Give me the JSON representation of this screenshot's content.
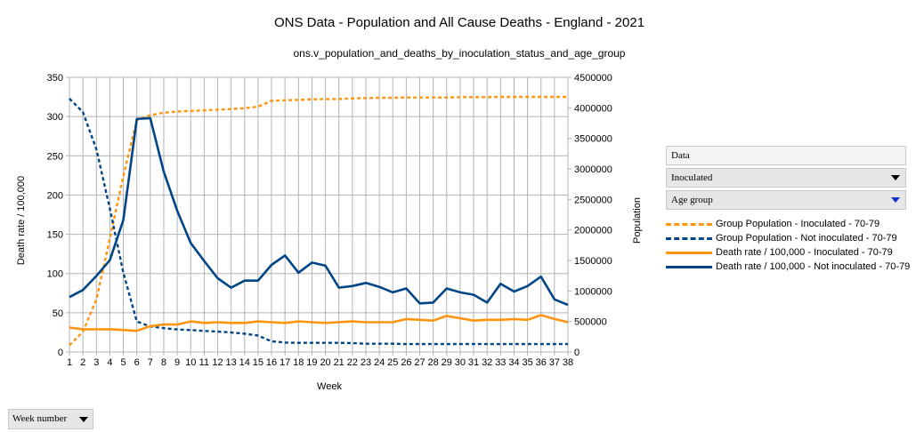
{
  "chart_data": {
    "type": "line",
    "title": "ONS Data - Population and All Cause Deaths - England - 2021",
    "subtitle": "ons.v_population_and_deaths_by_inoculation_status_and_age_group",
    "xlabel": "Week",
    "ylabel_left": "Death rate / 100,000",
    "ylabel_right": "Population",
    "x": [
      1,
      2,
      3,
      4,
      5,
      6,
      7,
      8,
      9,
      10,
      11,
      12,
      13,
      14,
      15,
      16,
      17,
      18,
      19,
      20,
      21,
      22,
      23,
      24,
      25,
      26,
      27,
      28,
      29,
      30,
      31,
      32,
      33,
      34,
      35,
      36,
      37,
      38
    ],
    "ylim_left": [
      0,
      350
    ],
    "yticks_left": [
      0,
      50,
      100,
      150,
      200,
      250,
      300,
      350
    ],
    "ylim_right": [
      0,
      4500000
    ],
    "yticks_right": [
      0,
      500000,
      1000000,
      1500000,
      2000000,
      2500000,
      3000000,
      3500000,
      4000000,
      4500000
    ],
    "grid": true,
    "legend_position": "right",
    "series": [
      {
        "name": "Group Population - Inoculated - 70-79",
        "axis": "right",
        "style": "dashed",
        "color": "#ff950e",
        "values": [
          110000,
          330000,
          860000,
          1860000,
          2880000,
          3800000,
          3880000,
          3920000,
          3940000,
          3950000,
          3960000,
          3970000,
          3980000,
          3995000,
          4020000,
          4115000,
          4125000,
          4130000,
          4140000,
          4145000,
          4145000,
          4155000,
          4160000,
          4165000,
          4165000,
          4170000,
          4170000,
          4170000,
          4170000,
          4175000,
          4175000,
          4175000,
          4180000,
          4180000,
          4180000,
          4180000,
          4180000,
          4180000
        ]
      },
      {
        "name": "Group Population - Not inoculated - 70-79",
        "axis": "right",
        "style": "dashed",
        "color": "#004586",
        "values": [
          4150000,
          3930000,
          3320000,
          2350000,
          1300000,
          500000,
          420000,
          390000,
          370000,
          360000,
          345000,
          335000,
          320000,
          300000,
          270000,
          175000,
          155000,
          150000,
          150000,
          150000,
          150000,
          145000,
          135000,
          135000,
          135000,
          130000,
          130000,
          130000,
          130000,
          130000,
          130000,
          130000,
          130000,
          130000,
          130000,
          130000,
          130000,
          130000
        ]
      },
      {
        "name": "Death rate / 100,000 - Inoculated - 70-79",
        "axis": "left",
        "style": "solid",
        "color": "#ff950e",
        "values": [
          31,
          29,
          29,
          29,
          28,
          27,
          33,
          35,
          35,
          39,
          37,
          38,
          37,
          37,
          39,
          38,
          37,
          39,
          38,
          37,
          38,
          39,
          38,
          38,
          38,
          42,
          41,
          40,
          46,
          43,
          40,
          41,
          41,
          42,
          41,
          47,
          42,
          38
        ]
      },
      {
        "name": "Death rate / 100,000 - Not inoculated - 70-79",
        "axis": "left",
        "style": "solid",
        "color": "#004586",
        "values": [
          70,
          79,
          97,
          117,
          168,
          297,
          298,
          230,
          180,
          139,
          116,
          94,
          82,
          91,
          91,
          111,
          123,
          101,
          114,
          110,
          82,
          84,
          88,
          83,
          76,
          81,
          62,
          63,
          81,
          76,
          73,
          63,
          87,
          77,
          84,
          96,
          67,
          60
        ]
      }
    ]
  },
  "pivot": {
    "data_field": "Data",
    "inoculated_field": "Inoculated",
    "age_group_field": "Age group",
    "week_field": "Week number"
  }
}
